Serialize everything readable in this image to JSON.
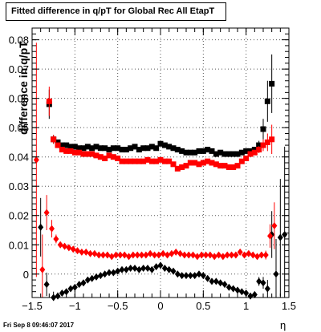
{
  "chart_data": {
    "type": "scatter",
    "title": "Fitted difference in q/pT for Global Rec All EtapT",
    "xlabel": "η",
    "ylabel": "difference in q/pT",
    "timestamp": "Fri Sep  8 09:46:07 2017",
    "xlim": [
      -1.5,
      1.5
    ],
    "ylim": [
      -0.008,
      0.084
    ],
    "x_ticks": [
      -1.5,
      -1,
      -0.5,
      0,
      0.5,
      1,
      1.5
    ],
    "x_tick_labels": [
      "−1.5",
      "−1",
      "−0.5",
      "0",
      "0.5",
      "1",
      "1.5"
    ],
    "y_ticks": [
      0,
      0.01,
      0.02,
      0.03,
      0.04,
      0.05,
      0.06,
      0.07,
      0.08
    ],
    "y_tick_labels": [
      "0",
      "0.01",
      "0.02",
      "0.03",
      "0.04",
      "0.05",
      "0.06",
      "0.07",
      "0.08"
    ],
    "grid": true,
    "series": [
      {
        "marker": "square",
        "color": "#000000",
        "x": [
          -1.3,
          -1.25,
          -1.2,
          -1.15,
          -1.1,
          -1.05,
          -1.0,
          -0.95,
          -0.9,
          -0.85,
          -0.8,
          -0.75,
          -0.7,
          -0.65,
          -0.6,
          -0.55,
          -0.5,
          -0.45,
          -0.4,
          -0.35,
          -0.3,
          -0.25,
          -0.2,
          -0.15,
          -0.1,
          -0.05,
          0.0,
          0.05,
          0.1,
          0.15,
          0.2,
          0.25,
          0.3,
          0.35,
          0.4,
          0.45,
          0.5,
          0.55,
          0.6,
          0.65,
          0.7,
          0.75,
          0.8,
          0.85,
          0.9,
          0.95,
          1.0,
          1.05,
          1.1,
          1.15,
          1.2,
          1.25,
          1.3
        ],
        "y": [
          0.058,
          0.046,
          0.045,
          0.044,
          0.044,
          0.0435,
          0.0435,
          0.043,
          0.043,
          0.0435,
          0.043,
          0.0435,
          0.043,
          0.043,
          0.0425,
          0.043,
          0.043,
          0.0425,
          0.0425,
          0.043,
          0.0435,
          0.0425,
          0.043,
          0.043,
          0.0435,
          0.043,
          0.0445,
          0.044,
          0.0435,
          0.043,
          0.0425,
          0.042,
          0.0415,
          0.0415,
          0.0415,
          0.042,
          0.042,
          0.0425,
          0.042,
          0.041,
          0.0415,
          0.041,
          0.041,
          0.041,
          0.041,
          0.0415,
          0.042,
          0.042,
          0.0425,
          0.044,
          0.0495,
          0.059,
          0.065
        ],
        "err": [
          0.005,
          0.0015,
          0.0008,
          0.0005,
          0.0004,
          0.0003,
          0.0003,
          0.0003,
          0.0003,
          0.0003,
          0.0003,
          0.0003,
          0.0003,
          0.0003,
          0.0003,
          0.0003,
          0.0003,
          0.0003,
          0.0003,
          0.0003,
          0.0003,
          0.0003,
          0.0003,
          0.0003,
          0.0003,
          0.0003,
          0.0003,
          0.0003,
          0.0003,
          0.0003,
          0.0003,
          0.0003,
          0.0003,
          0.0003,
          0.0003,
          0.0003,
          0.0003,
          0.0003,
          0.0003,
          0.0003,
          0.0003,
          0.0003,
          0.0003,
          0.0003,
          0.0003,
          0.0003,
          0.0004,
          0.0005,
          0.0008,
          0.0015,
          0.0035,
          0.007,
          0.01
        ]
      },
      {
        "marker": "square",
        "color": "#ff0000",
        "x": [
          -1.3,
          -1.25,
          -1.2,
          -1.15,
          -1.1,
          -1.05,
          -1.0,
          -0.95,
          -0.9,
          -0.85,
          -0.8,
          -0.75,
          -0.7,
          -0.65,
          -0.6,
          -0.55,
          -0.5,
          -0.45,
          -0.4,
          -0.35,
          -0.3,
          -0.25,
          -0.2,
          -0.15,
          -0.1,
          -0.05,
          0.0,
          0.05,
          0.1,
          0.15,
          0.2,
          0.25,
          0.3,
          0.35,
          0.4,
          0.45,
          0.5,
          0.55,
          0.6,
          0.65,
          0.7,
          0.75,
          0.8,
          0.85,
          0.9,
          0.95,
          1.0,
          1.05,
          1.1,
          1.15,
          1.2,
          1.25,
          1.3
        ],
        "y": [
          0.059,
          0.046,
          0.044,
          0.0425,
          0.042,
          0.042,
          0.0415,
          0.0415,
          0.041,
          0.041,
          0.041,
          0.0405,
          0.04,
          0.0395,
          0.0405,
          0.04,
          0.0395,
          0.0385,
          0.0385,
          0.0385,
          0.0385,
          0.0385,
          0.0385,
          0.039,
          0.0385,
          0.0385,
          0.039,
          0.0385,
          0.0385,
          0.0375,
          0.036,
          0.0365,
          0.037,
          0.038,
          0.038,
          0.0375,
          0.038,
          0.0385,
          0.038,
          0.0375,
          0.037,
          0.037,
          0.0365,
          0.0365,
          0.037,
          0.0385,
          0.0395,
          0.041,
          0.0415,
          0.0425,
          0.044,
          0.045,
          0.046
        ],
        "err": [
          0.005,
          0.0015,
          0.0008,
          0.0005,
          0.0004,
          0.0003,
          0.0003,
          0.0003,
          0.0003,
          0.0003,
          0.0003,
          0.0003,
          0.0003,
          0.0003,
          0.0003,
          0.0003,
          0.0003,
          0.0003,
          0.0003,
          0.0003,
          0.0003,
          0.0003,
          0.0003,
          0.0003,
          0.0003,
          0.0003,
          0.0003,
          0.0003,
          0.0003,
          0.0003,
          0.0003,
          0.0003,
          0.0003,
          0.0003,
          0.0003,
          0.0003,
          0.0003,
          0.0003,
          0.0003,
          0.0003,
          0.0003,
          0.0003,
          0.0003,
          0.0003,
          0.0003,
          0.0003,
          0.0004,
          0.0005,
          0.0008,
          0.0012,
          0.002,
          0.003,
          0.005
        ]
      },
      {
        "marker": "diamond",
        "color": "#000000",
        "x": [
          -1.4,
          -1.33,
          -1.25,
          -1.2,
          -1.15,
          -1.1,
          -1.05,
          -1.0,
          -0.95,
          -0.9,
          -0.85,
          -0.8,
          -0.75,
          -0.7,
          -0.65,
          -0.6,
          -0.55,
          -0.5,
          -0.45,
          -0.4,
          -0.35,
          -0.3,
          -0.25,
          -0.2,
          -0.15,
          -0.1,
          -0.05,
          0.0,
          0.05,
          0.1,
          0.15,
          0.2,
          0.25,
          0.3,
          0.35,
          0.4,
          0.45,
          0.5,
          0.55,
          0.6,
          0.65,
          0.7,
          0.75,
          0.8,
          0.85,
          0.9,
          0.95,
          1.0,
          1.05,
          1.1,
          1.15,
          1.2,
          1.25,
          1.3,
          1.35,
          1.4,
          1.45
        ],
        "y": [
          0.016,
          -0.0035,
          -0.008,
          -0.0075,
          -0.0065,
          -0.006,
          -0.005,
          -0.0045,
          -0.0035,
          -0.003,
          -0.002,
          -0.0015,
          -0.001,
          -0.0005,
          0.0,
          0.0005,
          0.0005,
          0.001,
          0.0015,
          0.0015,
          0.002,
          0.002,
          0.0015,
          0.002,
          0.002,
          0.0015,
          0.0025,
          0.003,
          0.002,
          0.0015,
          0.001,
          0.0,
          -0.0005,
          -0.0005,
          -0.0005,
          -0.0005,
          0.0,
          -0.0005,
          -0.0015,
          -0.0025,
          -0.0025,
          -0.003,
          -0.0035,
          -0.0045,
          -0.005,
          -0.0055,
          -0.006,
          -0.0065,
          -0.0075,
          -0.007,
          -0.0025,
          -0.003,
          -0.005,
          0.0135,
          0.0,
          0.0125,
          0.0135
        ],
        "err": [
          0.01,
          0.004,
          0.002,
          0.0012,
          0.0008,
          0.0006,
          0.0005,
          0.0004,
          0.0004,
          0.0004,
          0.0004,
          0.0004,
          0.0004,
          0.0004,
          0.0004,
          0.0004,
          0.0004,
          0.0004,
          0.0004,
          0.0004,
          0.0004,
          0.0004,
          0.0004,
          0.0004,
          0.0004,
          0.0004,
          0.0004,
          0.0004,
          0.0004,
          0.0004,
          0.0004,
          0.0004,
          0.0004,
          0.0004,
          0.0004,
          0.0004,
          0.0004,
          0.0004,
          0.0004,
          0.0004,
          0.0004,
          0.0004,
          0.0004,
          0.0004,
          0.0004,
          0.0004,
          0.0005,
          0.0006,
          0.0008,
          0.001,
          0.0015,
          0.002,
          0.003,
          0.008,
          0.012,
          0.02,
          0.03
        ]
      },
      {
        "marker": "diamond",
        "color": "#ff0000",
        "x": [
          -1.45,
          -1.38,
          -1.33,
          -1.27,
          -1.22,
          -1.17,
          -1.12,
          -1.07,
          -1.02,
          -0.97,
          -0.92,
          -0.87,
          -0.82,
          -0.77,
          -0.72,
          -0.67,
          -0.62,
          -0.57,
          -0.52,
          -0.47,
          -0.42,
          -0.37,
          -0.32,
          -0.27,
          -0.22,
          -0.17,
          -0.12,
          -0.07,
          -0.02,
          0.03,
          0.08,
          0.13,
          0.18,
          0.23,
          0.28,
          0.33,
          0.38,
          0.43,
          0.48,
          0.53,
          0.58,
          0.63,
          0.68,
          0.73,
          0.78,
          0.83,
          0.88,
          0.93,
          0.98,
          1.03,
          1.08,
          1.13,
          1.18,
          1.23,
          1.28,
          1.33
        ],
        "y": [
          0.039,
          0.0015,
          0.021,
          0.0155,
          0.012,
          0.01,
          0.0095,
          0.009,
          0.0085,
          0.008,
          0.0075,
          0.0075,
          0.007,
          0.007,
          0.0065,
          0.0065,
          0.0065,
          0.006,
          0.0065,
          0.0065,
          0.0065,
          0.006,
          0.0065,
          0.0065,
          0.0065,
          0.0065,
          0.007,
          0.0065,
          0.0065,
          0.007,
          0.0065,
          0.007,
          0.0075,
          0.007,
          0.0065,
          0.0065,
          0.0065,
          0.006,
          0.0065,
          0.0065,
          0.0065,
          0.006,
          0.0065,
          0.006,
          0.0065,
          0.0065,
          0.0065,
          0.0075,
          0.0065,
          0.007,
          0.0065,
          0.006,
          0.0065,
          0.0065,
          0.013,
          0.0165
        ],
        "err": [
          0.04,
          0.012,
          0.006,
          0.003,
          0.0015,
          0.001,
          0.0008,
          0.0006,
          0.0005,
          0.0004,
          0.0004,
          0.0004,
          0.0004,
          0.0004,
          0.0004,
          0.0004,
          0.0004,
          0.0004,
          0.0004,
          0.0004,
          0.0004,
          0.0004,
          0.0004,
          0.0004,
          0.0004,
          0.0004,
          0.0004,
          0.0004,
          0.0004,
          0.0004,
          0.0004,
          0.0004,
          0.0004,
          0.0004,
          0.0004,
          0.0004,
          0.0004,
          0.0004,
          0.0004,
          0.0004,
          0.0004,
          0.0004,
          0.0004,
          0.0004,
          0.0004,
          0.0004,
          0.0004,
          0.0004,
          0.0005,
          0.0005,
          0.0006,
          0.0008,
          0.001,
          0.0015,
          0.004,
          0.008
        ]
      }
    ]
  }
}
